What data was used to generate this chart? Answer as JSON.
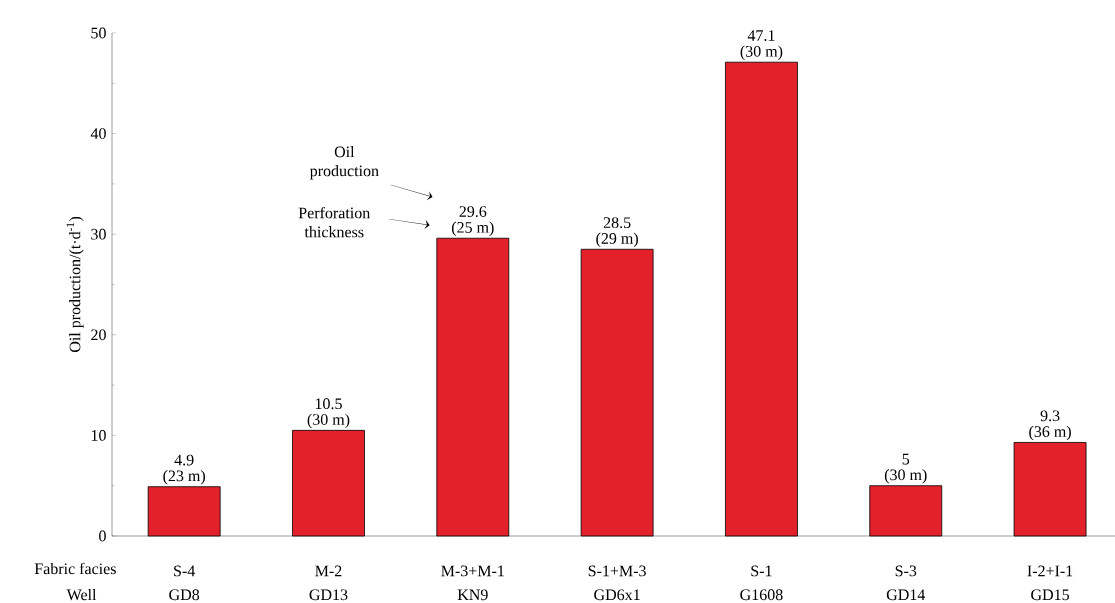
{
  "chart_data": {
    "type": "bar",
    "ylabel": "Oil production/(t·d$^{-1}$)",
    "categories": [
      "S-4",
      "M-2",
      "M-3+M-1",
      "S-1+M-3",
      "S-1",
      "S-3",
      "I-2+I-1"
    ],
    "values": [
      4.9,
      10.5,
      29.6,
      28.5,
      47.1,
      5,
      9.3
    ],
    "data_labels": true,
    "color": "#e3212b",
    "ylim": [
      0,
      50
    ],
    "yticks": [
      0,
      10,
      20,
      30,
      40,
      50
    ],
    "annotations": [
      "Oil production",
      "Perforation thickness",
      "Fabric facies",
      "Well",
      "GD8",
      "GD13",
      "KN9",
      "GD6x1",
      "G1608",
      "GD14",
      "GD15",
      {
        "text": "(23 m)",
        "x": "S-4",
        "y": 4.9
      },
      {
        "text": "(30 m)",
        "x": "M-2",
        "y": 10.5
      },
      {
        "text": "(25 m)",
        "x": "M-3+M-1",
        "y": 29.6
      },
      {
        "text": "(29 m)",
        "x": "S-1+M-3",
        "y": 28.5
      },
      {
        "text": "(30 m)",
        "x": "S-1",
        "y": 47.1
      },
      {
        "text": "(30 m)",
        "x": "S-3",
        "y": 5
      },
      {
        "text": "(36 m)",
        "x": "I-2+I-1",
        "y": 9.3
      }
    ]
  }
}
